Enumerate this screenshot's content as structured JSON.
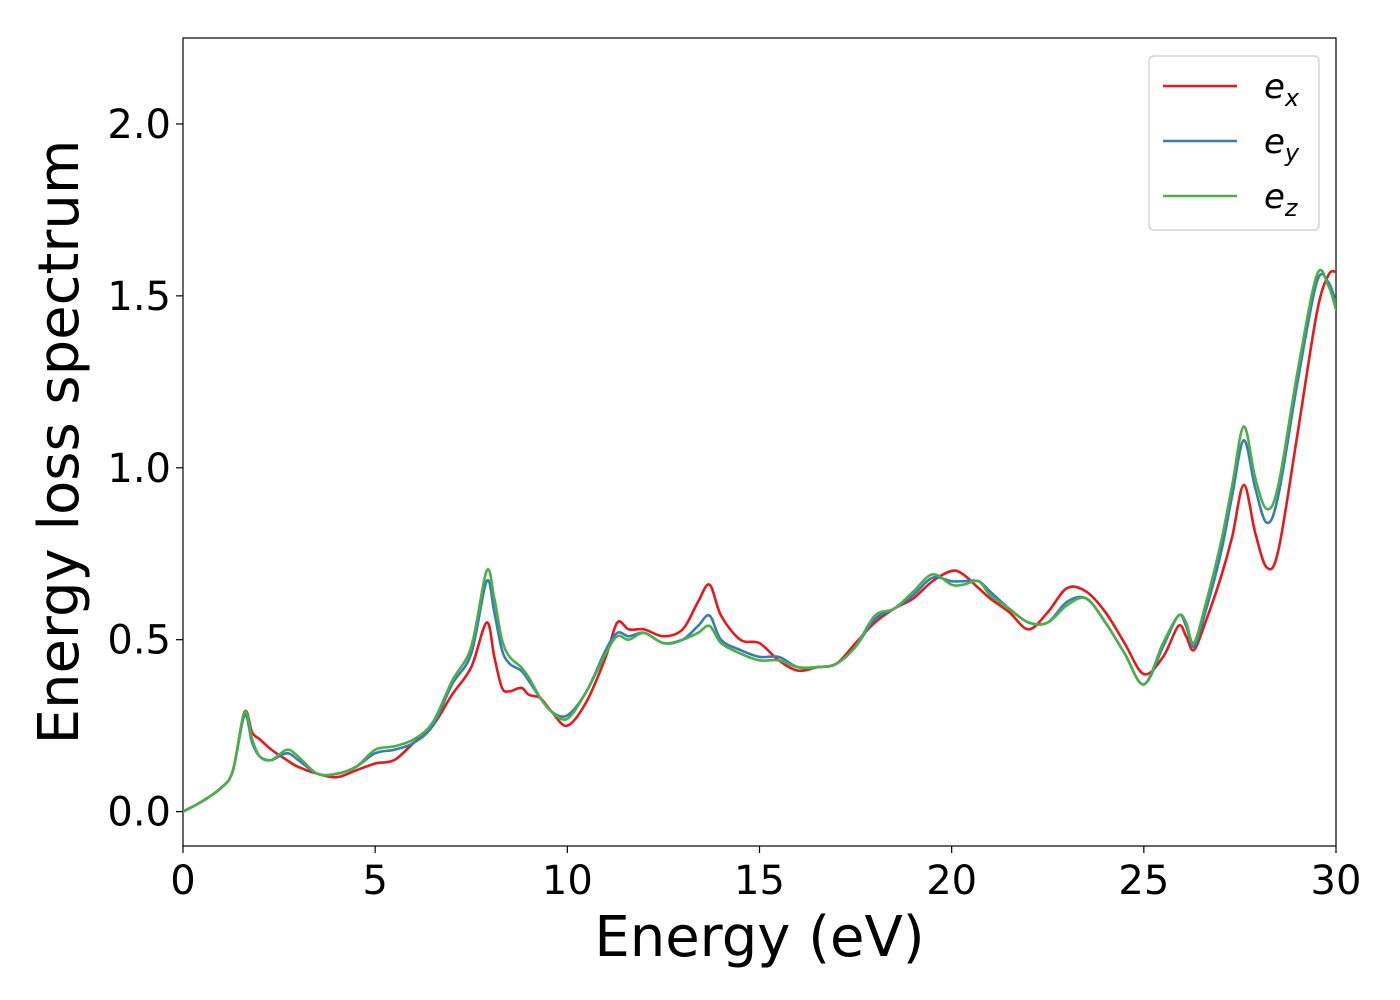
{
  "chart_data": {
    "type": "line",
    "title": "",
    "xlabel": "Energy (eV)",
    "ylabel": "Energy loss spectrum",
    "xlim": [
      0,
      30
    ],
    "ylim": [
      -0.1,
      2.25
    ],
    "xticks": [
      0,
      5,
      10,
      15,
      20,
      25,
      30
    ],
    "xtick_labels": [
      "0",
      "5",
      "10",
      "15",
      "20",
      "25",
      "30"
    ],
    "yticks": [
      0.0,
      0.5,
      1.0,
      1.5,
      2.0
    ],
    "ytick_labels": [
      "0.0",
      "0.5",
      "1.0",
      "1.5",
      "2.0"
    ],
    "grid": false,
    "legend_position": "top-right",
    "series": [
      {
        "name": "ex",
        "color": "#e41a1c",
        "x": [
          0,
          0.5,
          1.0,
          1.3,
          1.6,
          1.8,
          2.0,
          2.3,
          2.7,
          3.0,
          3.5,
          4.0,
          4.5,
          5.0,
          5.5,
          6.0,
          6.5,
          7.0,
          7.5,
          7.9,
          8.1,
          8.3,
          8.5,
          8.8,
          9.0,
          9.3,
          9.6,
          10.0,
          10.5,
          11.0,
          11.3,
          11.6,
          12.0,
          12.5,
          13.0,
          13.4,
          13.7,
          14.0,
          14.5,
          15.0,
          15.5,
          16.0,
          16.5,
          17.0,
          17.5,
          18.0,
          18.5,
          19.0,
          19.5,
          20.0,
          20.3,
          20.7,
          21.0,
          21.5,
          22.0,
          22.5,
          23.0,
          23.5,
          24.0,
          24.5,
          25.0,
          25.5,
          25.9,
          26.1,
          26.3,
          26.6,
          27.0,
          27.3,
          27.6,
          27.9,
          28.2,
          28.5,
          29.0,
          29.5,
          29.8,
          30.0
        ],
        "y": [
          0.0,
          0.03,
          0.07,
          0.12,
          0.29,
          0.23,
          0.21,
          0.18,
          0.15,
          0.13,
          0.11,
          0.1,
          0.12,
          0.14,
          0.15,
          0.2,
          0.25,
          0.34,
          0.42,
          0.55,
          0.45,
          0.36,
          0.35,
          0.36,
          0.34,
          0.33,
          0.29,
          0.25,
          0.32,
          0.45,
          0.55,
          0.53,
          0.53,
          0.51,
          0.53,
          0.61,
          0.66,
          0.57,
          0.5,
          0.49,
          0.44,
          0.41,
          0.42,
          0.43,
          0.49,
          0.55,
          0.59,
          0.62,
          0.67,
          0.7,
          0.69,
          0.65,
          0.62,
          0.58,
          0.53,
          0.58,
          0.65,
          0.64,
          0.58,
          0.49,
          0.4,
          0.45,
          0.54,
          0.51,
          0.47,
          0.55,
          0.68,
          0.8,
          0.95,
          0.81,
          0.71,
          0.76,
          1.1,
          1.45,
          1.56,
          1.57
        ]
      },
      {
        "name": "ey",
        "color": "#377eb8",
        "x": [
          0,
          0.5,
          1.0,
          1.3,
          1.6,
          1.8,
          2.0,
          2.3,
          2.7,
          3.0,
          3.5,
          4.0,
          4.5,
          5.0,
          5.5,
          6.0,
          6.5,
          7.0,
          7.5,
          7.9,
          8.1,
          8.3,
          8.5,
          8.8,
          9.0,
          9.3,
          9.6,
          10.0,
          10.5,
          11.0,
          11.3,
          11.6,
          12.0,
          12.5,
          13.0,
          13.4,
          13.7,
          14.0,
          14.5,
          15.0,
          15.5,
          16.0,
          16.5,
          17.0,
          17.5,
          18.0,
          18.5,
          19.0,
          19.5,
          20.0,
          20.3,
          20.7,
          21.0,
          21.5,
          22.0,
          22.5,
          23.0,
          23.5,
          24.0,
          24.5,
          25.0,
          25.5,
          25.9,
          26.1,
          26.3,
          26.6,
          27.0,
          27.3,
          27.6,
          27.9,
          28.2,
          28.5,
          29.0,
          29.5,
          29.8,
          30.0
        ],
        "y": [
          0.0,
          0.03,
          0.07,
          0.12,
          0.28,
          0.2,
          0.16,
          0.15,
          0.17,
          0.15,
          0.11,
          0.11,
          0.13,
          0.17,
          0.18,
          0.2,
          0.25,
          0.37,
          0.46,
          0.67,
          0.58,
          0.47,
          0.43,
          0.41,
          0.38,
          0.33,
          0.29,
          0.28,
          0.35,
          0.47,
          0.52,
          0.51,
          0.52,
          0.49,
          0.5,
          0.54,
          0.57,
          0.5,
          0.47,
          0.45,
          0.45,
          0.42,
          0.42,
          0.43,
          0.48,
          0.56,
          0.59,
          0.63,
          0.68,
          0.67,
          0.67,
          0.67,
          0.64,
          0.59,
          0.55,
          0.55,
          0.61,
          0.62,
          0.55,
          0.46,
          0.37,
          0.48,
          0.57,
          0.54,
          0.48,
          0.58,
          0.75,
          0.92,
          1.08,
          0.94,
          0.84,
          0.92,
          1.25,
          1.54,
          1.54,
          1.48
        ]
      },
      {
        "name": "ez",
        "color": "#4daf4a",
        "x": [
          0,
          0.5,
          1.0,
          1.3,
          1.6,
          1.8,
          2.0,
          2.3,
          2.7,
          3.0,
          3.5,
          4.0,
          4.5,
          5.0,
          5.5,
          6.0,
          6.5,
          7.0,
          7.5,
          7.9,
          8.1,
          8.3,
          8.5,
          8.8,
          9.0,
          9.3,
          9.6,
          10.0,
          10.5,
          11.0,
          11.3,
          11.6,
          12.0,
          12.5,
          13.0,
          13.4,
          13.7,
          14.0,
          14.5,
          15.0,
          15.5,
          16.0,
          16.5,
          17.0,
          17.5,
          18.0,
          18.5,
          19.0,
          19.5,
          20.0,
          20.3,
          20.7,
          21.0,
          21.5,
          22.0,
          22.5,
          23.0,
          23.5,
          24.0,
          24.5,
          25.0,
          25.5,
          25.9,
          26.1,
          26.3,
          26.6,
          27.0,
          27.3,
          27.6,
          27.9,
          28.2,
          28.5,
          29.0,
          29.5,
          29.8,
          30.0
        ],
        "y": [
          0.0,
          0.03,
          0.07,
          0.12,
          0.29,
          0.21,
          0.16,
          0.15,
          0.18,
          0.16,
          0.11,
          0.11,
          0.13,
          0.18,
          0.19,
          0.21,
          0.26,
          0.38,
          0.48,
          0.7,
          0.62,
          0.5,
          0.45,
          0.42,
          0.39,
          0.33,
          0.29,
          0.27,
          0.35,
          0.46,
          0.51,
          0.5,
          0.52,
          0.49,
          0.5,
          0.52,
          0.54,
          0.49,
          0.46,
          0.44,
          0.44,
          0.42,
          0.42,
          0.43,
          0.48,
          0.57,
          0.59,
          0.64,
          0.69,
          0.66,
          0.66,
          0.67,
          0.63,
          0.59,
          0.55,
          0.55,
          0.6,
          0.62,
          0.55,
          0.46,
          0.37,
          0.49,
          0.57,
          0.55,
          0.49,
          0.6,
          0.78,
          0.95,
          1.12,
          0.97,
          0.88,
          0.95,
          1.28,
          1.56,
          1.53,
          1.46
        ]
      }
    ]
  }
}
